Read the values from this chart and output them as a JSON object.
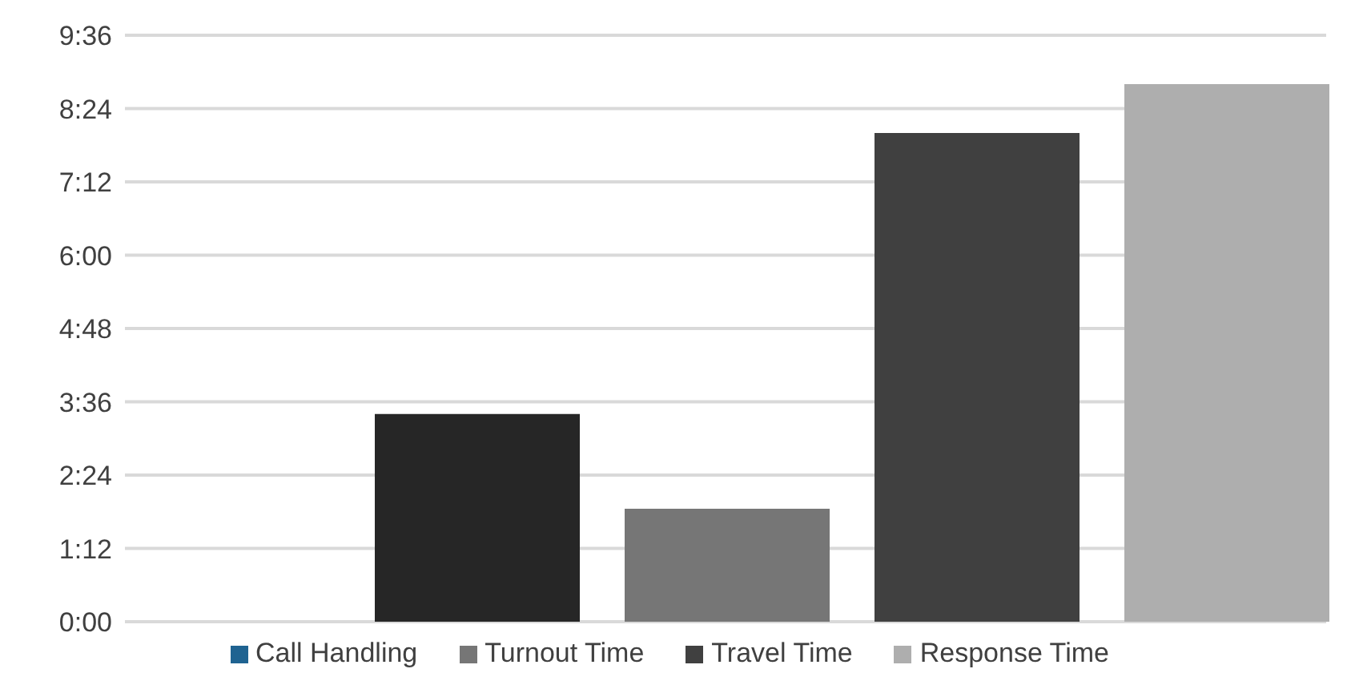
{
  "chart_data": {
    "type": "bar",
    "categories": [
      null
    ],
    "series": [
      {
        "name": "Call Handling",
        "color": "#1f6391",
        "values": [
          null
        ]
      },
      {
        "color": "#262626",
        "values": [
          3.4
        ]
      },
      {
        "name": "Turnout Time",
        "color": "#767676",
        "values": [
          1.85
        ]
      },
      {
        "name": "Travel Time",
        "color": "#404040",
        "values": [
          8.0
        ]
      },
      {
        "name": "Response Time",
        "color": "#aeaeae",
        "values": [
          8.8
        ]
      }
    ],
    "ylim": [
      0,
      9.6
    ],
    "yticks": [
      {
        "value": 0,
        "label": "0:00"
      },
      {
        "value": 1.2,
        "label": "1:12"
      },
      {
        "value": 2.4,
        "label": "2:24"
      },
      {
        "value": 3.6,
        "label": "3:36"
      },
      {
        "value": 4.8,
        "label": "4:48"
      },
      {
        "value": 6,
        "label": "6:00"
      },
      {
        "value": 7.2,
        "label": "7:12"
      },
      {
        "value": 8.4,
        "label": "8:24"
      },
      {
        "value": 9.6,
        "label": "9:36"
      }
    ],
    "grid": "y",
    "legend": "bottom"
  }
}
